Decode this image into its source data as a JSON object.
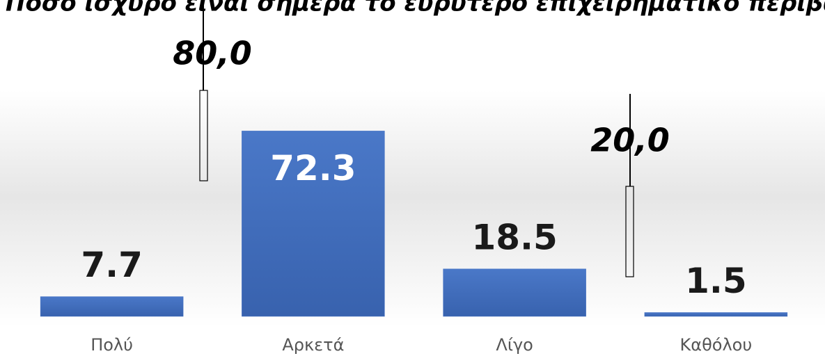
{
  "chart_data": {
    "type": "bar",
    "title": "Πόσο ισχυρό είναι σήμερα το ευρύτερο επιχειρηματικό περιβάλλον στην Ε",
    "categories": [
      "Πολύ",
      "Αρκετά",
      "Λίγο",
      "Καθόλου"
    ],
    "values": [
      7.7,
      72.3,
      18.5,
      1.5
    ],
    "color": "#4472c4",
    "ylim": [
      0,
      80
    ],
    "annotations": [
      "80,0",
      "20,0"
    ]
  }
}
